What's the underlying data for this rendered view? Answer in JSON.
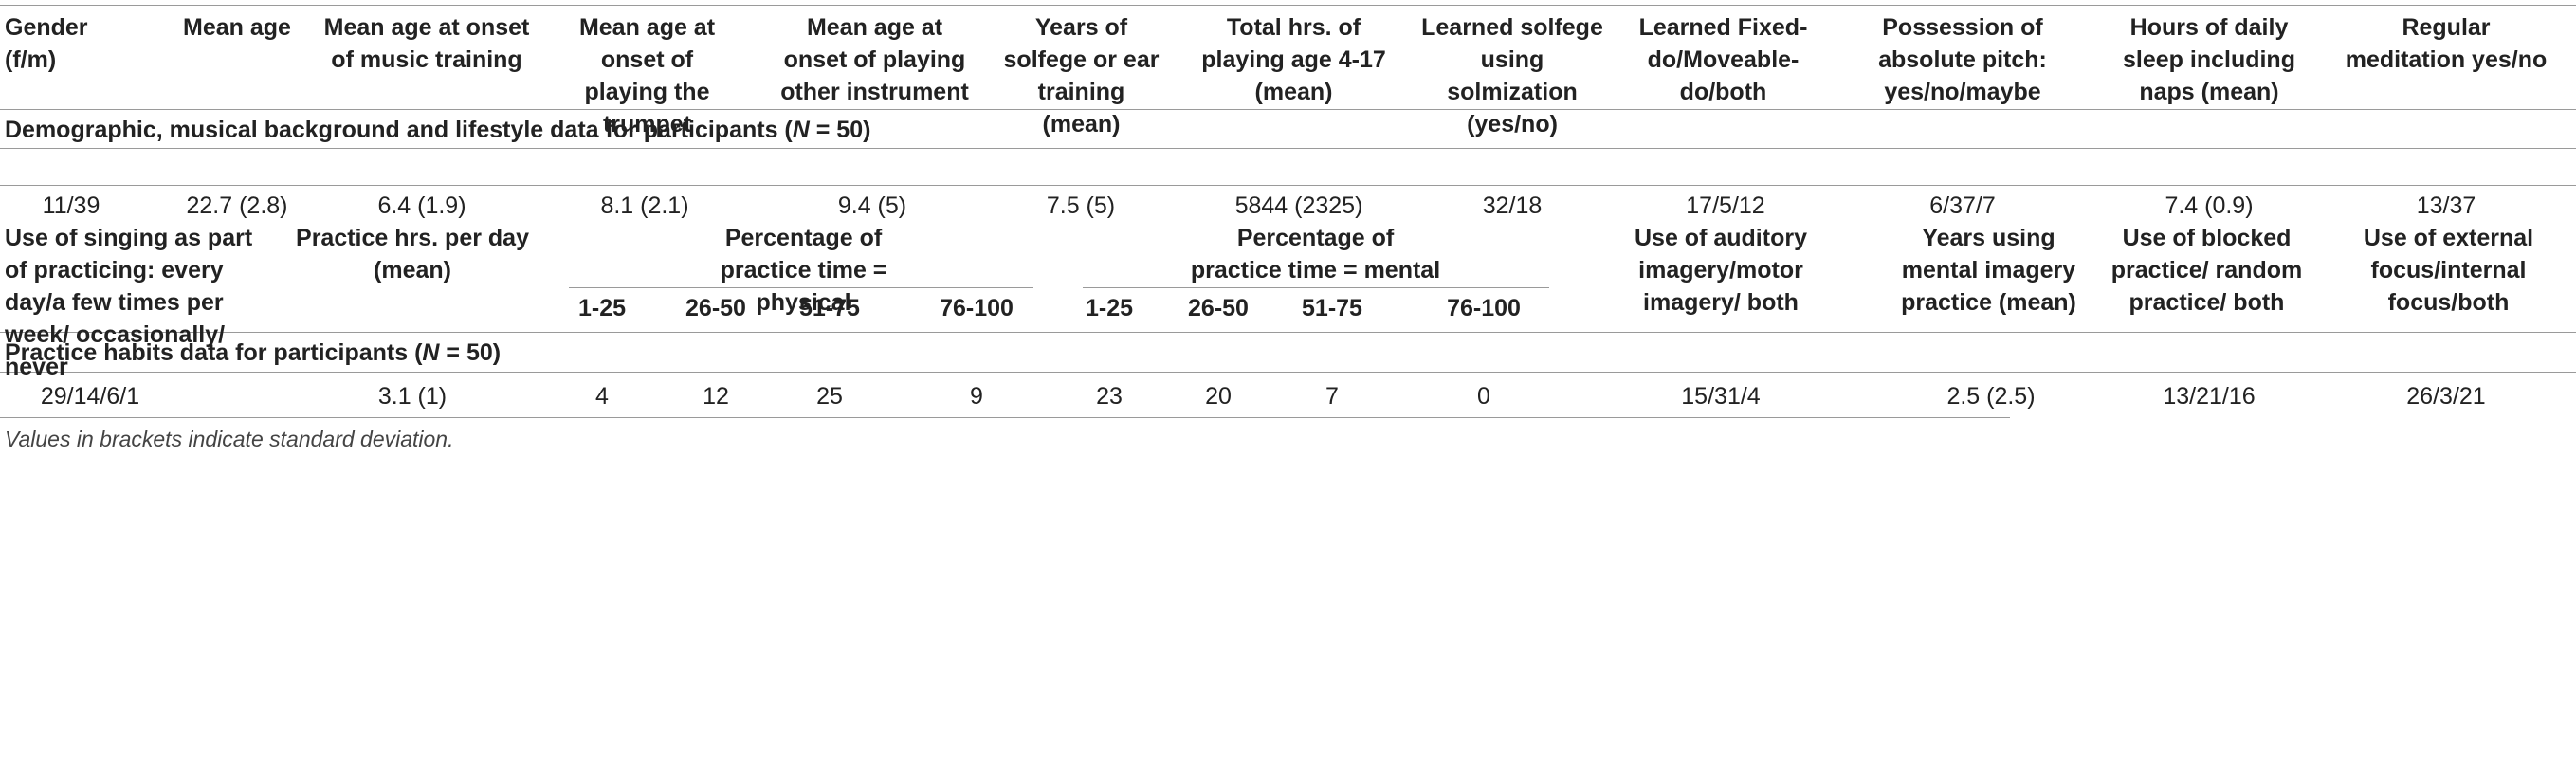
{
  "header1": [
    "Gender (f/m)",
    "Mean age",
    "Mean age at onset of music training",
    "Mean age at onset of playing the trumpet",
    "Mean age at onset of playing other instrument",
    "Years of solfege or ear training (mean)",
    "Total hrs. of playing age 4-17 (mean)",
    "Learned solfege using solmization (yes/no)",
    "Learned Fixed-do/Moveable-do/both",
    "Possession of absolute pitch: yes/no/maybe",
    "Hours of daily sleep including naps (mean)",
    "Regular meditation yes/no"
  ],
  "section1": {
    "title": "Demographic, musical background and lifestyle data for participants (",
    "n_label": "N",
    "n_value": " = 50)"
  },
  "row1": [
    "11/39",
    "22.7 (2.8)",
    "6.4 (1.9)",
    "8.1 (2.1)",
    "9.4 (5)",
    "7.5 (5)",
    "5844 (2325)",
    "32/18",
    "17/5/12",
    "6/37/7",
    "7.4 (0.9)",
    "13/37"
  ],
  "header2": {
    "singing": "Use of singing as part of practicing: every day/a few times per week/ occasionally/ never",
    "practice_hrs": "Practice hrs. per day (mean)",
    "physical": "Percentage of practice time = physical",
    "mental": "Percentage of practice time = mental",
    "imagery": "Use of auditory imagery/motor imagery/ both",
    "years_mental": "Years using mental imagery practice (mean)",
    "blocked": "Use of blocked practice/ random practice/ both",
    "focus": "Use of external focus/internal focus/both",
    "ranges": [
      "1-25",
      "26-50",
      "51-75",
      "76-100"
    ]
  },
  "section2": {
    "title": "Practice habits data for participants (",
    "n_label": "N",
    "n_value": " = 50)"
  },
  "row2": [
    "29/14/6/1",
    "3.1 (1)",
    "4",
    "12",
    "25",
    "9",
    "23",
    "20",
    "7",
    "0",
    "15/31/4",
    "2.5 (2.5)",
    "13/21/16",
    "26/3/21"
  ],
  "footnote": "Values in brackets indicate standard deviation."
}
